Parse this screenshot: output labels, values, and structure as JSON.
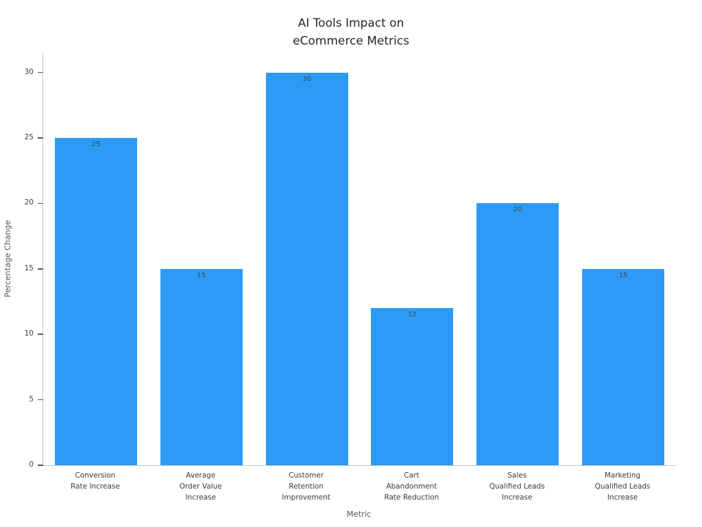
{
  "chart_data": {
    "type": "bar",
    "title": "AI Tools Impact on\neCommerce Metrics",
    "xlabel": "Metric",
    "ylabel": "Percentage Change",
    "categories": [
      "Conversion\nRate Increase",
      "Average\nOrder Value\nIncrease",
      "Customer\nRetention\nImprovement",
      "Cart\nAbandonment\nRate Reduction",
      "Sales\nQualified Leads\nIncrease",
      "Marketing\nQualified Leads\nIncrease"
    ],
    "values": [
      25,
      15,
      30,
      12,
      20,
      15
    ],
    "yticks": [
      0,
      5,
      10,
      15,
      20,
      25,
      30
    ],
    "ylim": [
      0,
      31.5
    ],
    "bar_color": "#2d9bf5",
    "value_label_color": "#3c4650",
    "grid": false,
    "legend": false,
    "background_color": "#ffffff"
  }
}
